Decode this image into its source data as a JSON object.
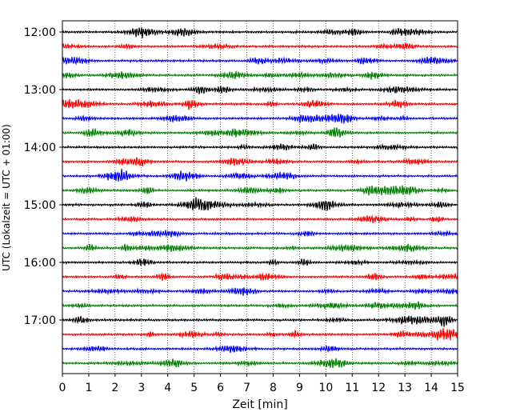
{
  "chart_data": {
    "type": "line",
    "title": "",
    "xlabel": "Zeit  [min]",
    "ylabel": "UTC (Lokalzeit = UTC + 01:00)",
    "xlim": [
      0,
      15
    ],
    "x_ticks": [
      "0",
      "1",
      "2",
      "3",
      "4",
      "5",
      "6",
      "7",
      "8",
      "9",
      "10",
      "11",
      "12",
      "13",
      "14",
      "15"
    ],
    "y_ticks": [
      "12:00",
      "13:00",
      "14:00",
      "15:00",
      "16:00",
      "17:00"
    ],
    "trace_start_times": [
      "12:00",
      "12:15",
      "12:30",
      "12:45",
      "13:00",
      "13:15",
      "13:30",
      "13:45",
      "14:00",
      "14:15",
      "14:30",
      "14:45",
      "15:00",
      "15:15",
      "15:30",
      "15:45",
      "16:00",
      "16:15",
      "16:30",
      "16:45",
      "17:00",
      "17:15",
      "17:30",
      "17:45"
    ],
    "trace_colors": [
      "#000000",
      "#ff0000",
      "#0000ff",
      "#008000"
    ],
    "vertical_grid": true,
    "grid_style": "dotted"
  }
}
